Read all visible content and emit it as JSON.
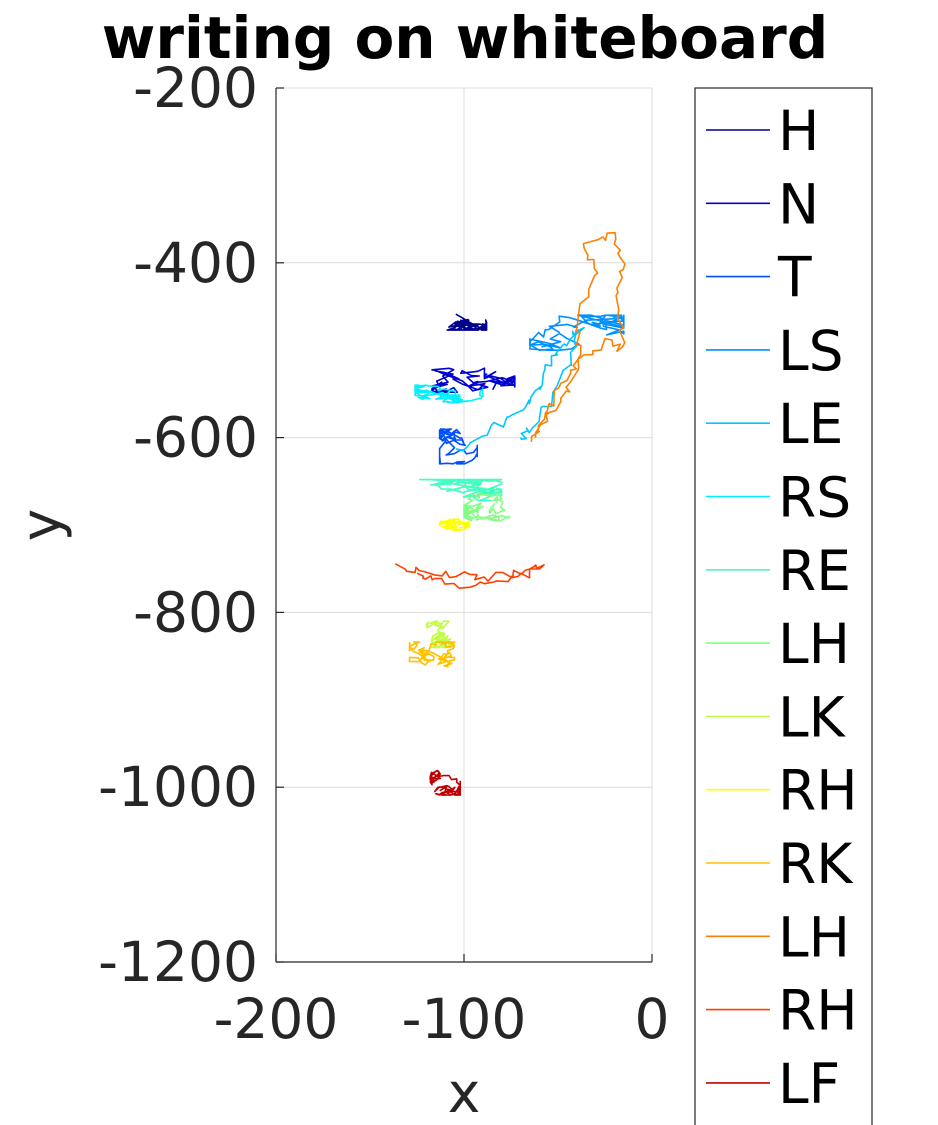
{
  "chart_data": {
    "type": "line",
    "title": "writing on whiteboard",
    "xlabel": "x",
    "ylabel": "y",
    "xlim": [
      -200,
      0
    ],
    "ylim": [
      -1200,
      -200
    ],
    "xticks": [
      "-200",
      "-100",
      "0"
    ],
    "yticks": [
      "-200",
      "-400",
      "-600",
      "-800",
      "-1000",
      "-1200"
    ],
    "grid": true,
    "legend_position": "right",
    "series": [
      {
        "name": "H",
        "color": "#00008f",
        "center": [
          -100,
          -463
        ],
        "spread": [
          12,
          14
        ]
      },
      {
        "name": "N",
        "color": "#0000d0",
        "center": [
          -95,
          -530
        ],
        "spread": [
          22,
          18
        ]
      },
      {
        "name": "T",
        "color": "#0050ff",
        "center": [
          -103,
          -610
        ],
        "spread": [
          10,
          20
        ]
      },
      {
        "name": "LS",
        "color": "#0090ff",
        "center": [
          -40,
          -480
        ],
        "spread": [
          25,
          20
        ]
      },
      {
        "name": "LE",
        "color": "#00c8ff",
        "path": [
          [
            -105,
            -615
          ],
          [
            -85,
            -590
          ],
          [
            -70,
            -570
          ],
          [
            -60,
            -545
          ],
          [
            -55,
            -515
          ],
          [
            -45,
            -490
          ],
          [
            -38,
            -475
          ],
          [
            -45,
            -520
          ],
          [
            -55,
            -560
          ],
          [
            -65,
            -590
          ],
          [
            -70,
            -600
          ]
        ]
      },
      {
        "name": "RS",
        "color": "#00f0ff",
        "center": [
          -108,
          -550
        ],
        "spread": [
          18,
          10
        ]
      },
      {
        "name": "RE",
        "color": "#40ffbf",
        "center": [
          -105,
          -660
        ],
        "spread": [
          25,
          12
        ]
      },
      {
        "name": "LH",
        "color": "#80ff80",
        "center": [
          -88,
          -680
        ],
        "spread": [
          12,
          15
        ]
      },
      {
        "name": "LK",
        "color": "#bfff40",
        "center": [
          -115,
          -825
        ],
        "spread": [
          8,
          15
        ]
      },
      {
        "name": "RH",
        "color": "#ffff00",
        "center": [
          -105,
          -698
        ],
        "spread": [
          8,
          8
        ]
      },
      {
        "name": "RK",
        "color": "#ffc000",
        "center": [
          -117,
          -848
        ],
        "spread": [
          12,
          14
        ]
      },
      {
        "name": "LH",
        "color": "#ff8000",
        "path": [
          [
            -65,
            -605
          ],
          [
            -55,
            -575
          ],
          [
            -45,
            -545
          ],
          [
            -38,
            -510
          ],
          [
            -40,
            -470
          ],
          [
            -30,
            -410
          ],
          [
            -35,
            -375
          ],
          [
            -20,
            -370
          ],
          [
            -15,
            -400
          ],
          [
            -18,
            -440
          ],
          [
            -15,
            -500
          ],
          [
            -25,
            -490
          ],
          [
            -40,
            -520
          ],
          [
            -50,
            -540
          ],
          [
            -55,
            -570
          ],
          [
            -62,
            -600
          ]
        ]
      },
      {
        "name": "RH",
        "color": "#ff4000",
        "path": [
          [
            -135,
            -748
          ],
          [
            -120,
            -752
          ],
          [
            -100,
            -758
          ],
          [
            -85,
            -760
          ],
          [
            -70,
            -752
          ],
          [
            -58,
            -750
          ],
          [
            -75,
            -762
          ],
          [
            -95,
            -770
          ],
          [
            -115,
            -765
          ],
          [
            -125,
            -755
          ]
        ]
      },
      {
        "name": "LF",
        "color": "#c00000",
        "center": [
          -110,
          -995
        ],
        "spread": [
          8,
          14
        ]
      }
    ]
  }
}
